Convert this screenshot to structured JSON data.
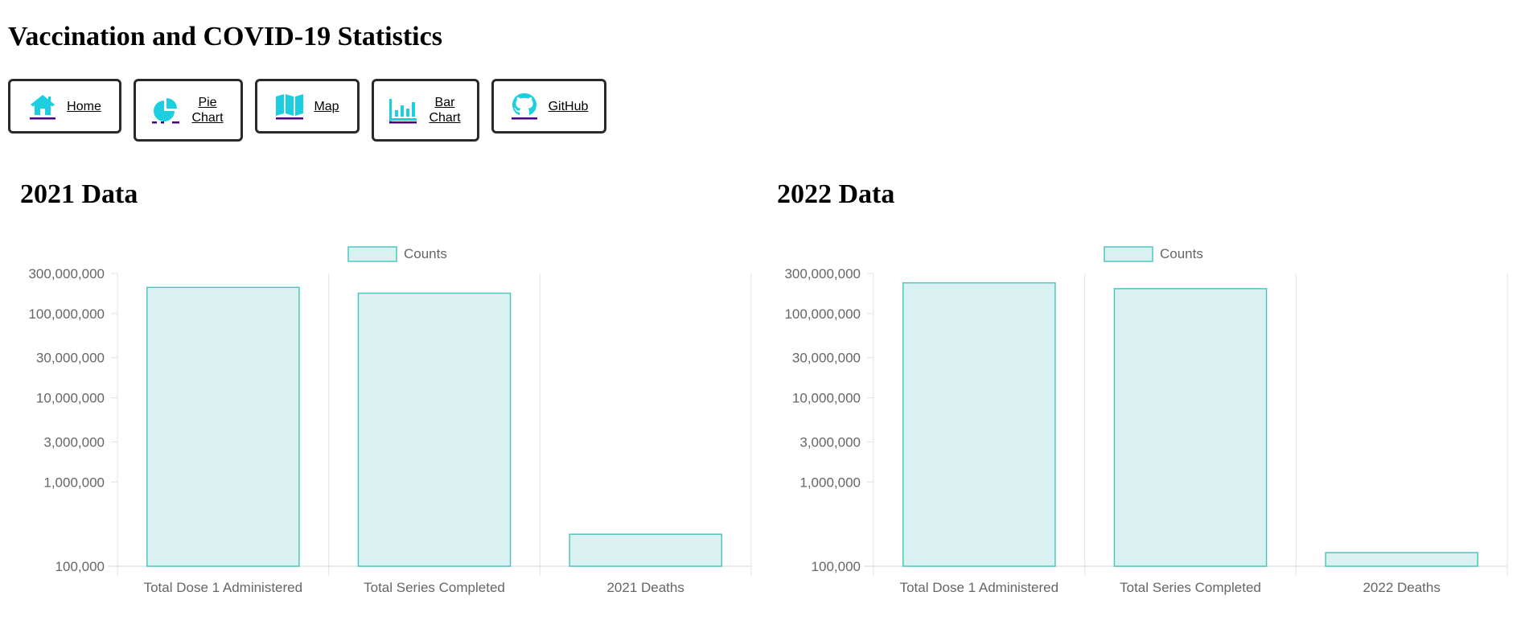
{
  "page": {
    "title": "Vaccination and COVID-19 Statistics"
  },
  "nav": [
    {
      "id": "home",
      "label": "Home",
      "icon": "home-icon"
    },
    {
      "id": "pie-chart",
      "label": "Pie Chart",
      "icon": "pie-chart-icon"
    },
    {
      "id": "map",
      "label": "Map",
      "icon": "map-icon"
    },
    {
      "id": "bar-chart",
      "label": "Bar Chart",
      "icon": "bar-chart-icon"
    },
    {
      "id": "github",
      "label": "GitHub",
      "icon": "github-icon"
    }
  ],
  "colors": {
    "icon": "#1ccfe0",
    "icon_underline": "#4b0082",
    "bar_fill": "#daf1f2",
    "bar_border": "#4fc6c0",
    "grid": "#e3e3e3",
    "tick_text": "#666666"
  },
  "sections": [
    {
      "title": "2021 Data"
    },
    {
      "title": "2022 Data"
    }
  ],
  "chart_data": [
    {
      "type": "bar",
      "title": "",
      "legend": {
        "label": "Counts",
        "position": "top"
      },
      "categories": [
        "Total Dose 1 Administered",
        "Total Series Completed",
        "2021 Deaths"
      ],
      "series": [
        {
          "name": "Counts",
          "values": [
            205000000,
            175000000,
            240000
          ]
        }
      ],
      "yscale": "log",
      "ylim": [
        100000,
        300000000
      ],
      "yticks": [
        100000,
        1000000,
        3000000,
        10000000,
        30000000,
        100000000,
        300000000
      ],
      "ytick_labels": [
        "100,000",
        "1,000,000",
        "3,000,000",
        "10,000,000",
        "30,000,000",
        "100,000,000",
        "300,000,000"
      ],
      "grid": true
    },
    {
      "type": "bar",
      "title": "",
      "legend": {
        "label": "Counts",
        "position": "top"
      },
      "categories": [
        "Total Dose 1 Administered",
        "Total Series Completed",
        "2022 Deaths"
      ],
      "series": [
        {
          "name": "Counts",
          "values": [
            232000000,
            198000000,
            145000
          ]
        }
      ],
      "yscale": "log",
      "ylim": [
        100000,
        300000000
      ],
      "yticks": [
        100000,
        1000000,
        3000000,
        10000000,
        30000000,
        100000000,
        300000000
      ],
      "ytick_labels": [
        "100,000",
        "1,000,000",
        "3,000,000",
        "10,000,000",
        "30,000,000",
        "100,000,000",
        "300,000,000"
      ],
      "grid": true
    }
  ]
}
